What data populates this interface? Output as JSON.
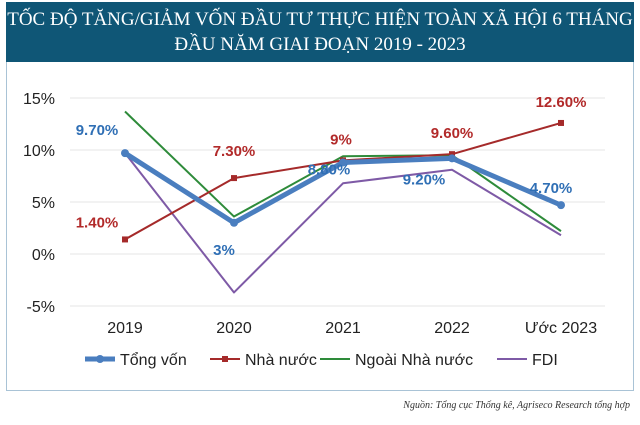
{
  "chart_data": {
    "type": "line",
    "title": "TỐC ĐỘ TĂNG/GIẢM VỐN ĐẦU TƯ THỰC HIỆN TOÀN XÃ HỘI 6 THÁNG ĐẦU NĂM GIAI ĐOẠN 2019 - 2023",
    "categories": [
      "2019",
      "2020",
      "2021",
      "2022",
      "Ước 2023"
    ],
    "ylim": [
      -5,
      15
    ],
    "yticks": [
      "-5%",
      "0%",
      "5%",
      "10%",
      "15%"
    ],
    "ytick_values": [
      -5,
      0,
      5,
      10,
      15
    ],
    "grid": true,
    "legend": "bottom",
    "series": [
      {
        "name": "Tổng vốn",
        "color": "#4a7ebf",
        "values": [
          9.7,
          3,
          8.8,
          9.2,
          4.7
        ],
        "labels": [
          "9.70%",
          "3%",
          "8.80%",
          "9.20%",
          "4.70%"
        ]
      },
      {
        "name": "Nhà nước",
        "color": "#a52a2a",
        "values": [
          1.4,
          7.3,
          9,
          9.6,
          12.6
        ],
        "labels": [
          "1.40%",
          "7.30%",
          "9%",
          "9.60%",
          "12.60%"
        ]
      },
      {
        "name": "Ngoài Nhà nước",
        "color": "#2e8b3a",
        "values": [
          13.7,
          3.6,
          9.4,
          9.5,
          2.2
        ]
      },
      {
        "name": "FDI",
        "color": "#7e5aa6",
        "values": [
          9.7,
          -3.7,
          6.8,
          8.1,
          1.8
        ]
      }
    ]
  },
  "source": "Nguồn: Tổng cục Thống kê, Agriseco Research tổng hợp"
}
